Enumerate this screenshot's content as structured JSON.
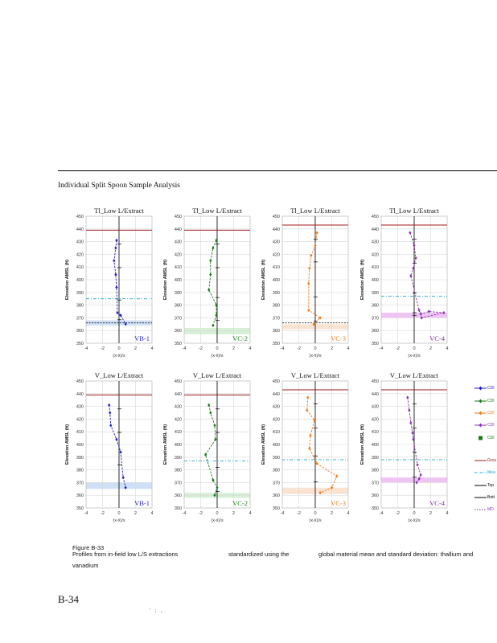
{
  "section_title": "Individual Split Spoon Sample Analysis",
  "caption": {
    "label": "Figure B-33",
    "line1_a": "Profiles from in-field low L/S extractions",
    "line1_b": "standardized using the",
    "line1_c": "global material mean and standard deviation: thallium and",
    "line2": "vanadium"
  },
  "page_number": "B-34",
  "footer_mark": "' ; ,",
  "colors": {
    "blue": "#1f1fc8",
    "green": "#1a7a1a",
    "orange": "#f07a1a",
    "purple": "#8a2fb0",
    "red": "#a01818",
    "cyan": "#20a8c8",
    "lightblue": "#cfe0f6",
    "lightgreen": "#d6f0d6",
    "lightorange": "#fbe3d2",
    "lightpurple": "#efc4f4"
  },
  "legend": [
    {
      "label": "CDI",
      "kind": "blue-line",
      "icon": "blue-diamond-marker"
    },
    {
      "label": "CDI",
      "kind": "green-line",
      "icon": "green-diamond-marker"
    },
    {
      "label": "CDI",
      "kind": "orange-line",
      "icon": "orange-diamond-marker"
    },
    {
      "label": "CDI",
      "kind": "purple-line",
      "icon": "purple-diamond-marker"
    },
    {
      "label": "CDI",
      "kind": "green-square",
      "icon": "green-square-marker"
    },
    {
      "label": "Grou",
      "kind": "red-line",
      "icon": "red-line"
    },
    {
      "label": "Mea",
      "kind": "cyan-dash",
      "icon": "cyan-dash-line"
    },
    {
      "label": "Top",
      "kind": "black-line",
      "icon": "black-line"
    },
    {
      "label": "Bott",
      "kind": "black-line",
      "icon": "black-line"
    },
    {
      "label": "MD",
      "kind": "purple-dot",
      "icon": "purple-dotted-line"
    }
  ],
  "chart_data": [
    {
      "type": "line",
      "title": "Tl_Low L/Extract",
      "tag": "VB-1",
      "color": "blue",
      "ylabel": "Elevation AMSL (ft)",
      "xlabel": "(x-x̄)/s",
      "xlim": [
        -4,
        4
      ],
      "ylim": [
        350,
        450
      ],
      "x_ticks": [
        "-4",
        "-2",
        "0",
        "2",
        "4"
      ],
      "y_ticks": [
        "350",
        "360",
        "370",
        "380",
        "390",
        "400",
        "410",
        "420",
        "430",
        "440",
        "450"
      ],
      "x": [
        -0.3,
        -0.4,
        -0.6,
        -0.4,
        -0.3,
        -0.2,
        0.2,
        0.8
      ],
      "y": [
        431,
        425,
        415,
        404,
        394,
        374,
        372,
        365
      ],
      "ground": 439,
      "mean": 385,
      "md": 366,
      "band": [
        364,
        368
      ],
      "band_color": "lightblue"
    },
    {
      "type": "line",
      "title": "Tl_Low L/Extract",
      "tag": "VC-2",
      "color": "green",
      "ylabel": "Elevation AMSL (ft)",
      "xlabel": "(x-x̄)/s",
      "xlim": [
        -4,
        4
      ],
      "ylim": [
        350,
        450
      ],
      "x_ticks": [
        "-4",
        "-2",
        "0",
        "2",
        "4"
      ],
      "y_ticks": [
        "350",
        "360",
        "370",
        "380",
        "390",
        "400",
        "410",
        "420",
        "430",
        "440",
        "450"
      ],
      "x": [
        -0.1,
        -0.5,
        -0.8,
        -0.8,
        -1.0,
        -0.1,
        -0.1,
        -0.5
      ],
      "y": [
        431,
        425,
        415,
        404,
        392,
        380,
        372,
        364
      ],
      "ground": 439,
      "mean": null,
      "md": null,
      "band": [
        357,
        362
      ],
      "band_color": "lightgreen"
    },
    {
      "type": "line",
      "title": "Tl_Low L/Extract",
      "tag": "VC-3",
      "color": "orange",
      "ylabel": "Elevation AMSL (ft)",
      "xlabel": "(x-x̄)/s",
      "xlim": [
        -4,
        4
      ],
      "ylim": [
        350,
        450
      ],
      "x_ticks": [
        "-4",
        "-2",
        "0",
        "2",
        "4"
      ],
      "y_ticks": [
        "350",
        "360",
        "370",
        "380",
        "390",
        "400",
        "410",
        "420",
        "430",
        "440",
        "450"
      ],
      "x": [
        0.2,
        0.0,
        -0.5,
        -0.7,
        -0.8,
        -0.8,
        0.6,
        -0.2
      ],
      "y": [
        437,
        427,
        419,
        409,
        397,
        376,
        370,
        365
      ],
      "ground": 443,
      "mean": null,
      "md": 366,
      "band": [
        361,
        365
      ],
      "band_color": "lightorange"
    },
    {
      "type": "line",
      "title": "Tl_Low L/Extract",
      "tag": "VC-4",
      "color": "purple",
      "ylabel": "Elevation AMSL (ft)",
      "xlabel": "(x-x̄)/s",
      "xlim": [
        -4,
        4
      ],
      "ylim": [
        350,
        450
      ],
      "x_ticks": [
        "-4",
        "-2",
        "0",
        "2",
        "4"
      ],
      "y_ticks": [
        "350",
        "360",
        "370",
        "380",
        "390",
        "400",
        "410",
        "420",
        "430",
        "440",
        "450"
      ],
      "x": [
        -0.5,
        0.0,
        0.2,
        -0.1,
        -0.4,
        0.6,
        0.8,
        1.8,
        3.6,
        0.9
      ],
      "y": [
        437,
        427,
        417,
        409,
        403,
        376,
        373,
        375,
        374,
        370
      ],
      "ground": 443,
      "mean": 387,
      "md": null,
      "band": [
        370,
        374
      ],
      "band_color": "lightpurple"
    },
    {
      "type": "line",
      "title": "V_Low L/Extract",
      "tag": "VB-1",
      "color": "blue",
      "ylabel": "Elevation AMSL (ft)",
      "xlabel": "(x-x̄)/s",
      "xlim": [
        -4,
        4
      ],
      "ylim": [
        350,
        450
      ],
      "x_ticks": [
        "-4",
        "-2",
        "0",
        "2",
        "4"
      ],
      "y_ticks": [
        "350",
        "360",
        "370",
        "380",
        "390",
        "400",
        "410",
        "420",
        "430",
        "440",
        "450"
      ],
      "x": [
        -1.2,
        -1.1,
        -1.0,
        -0.3,
        0.2,
        0.5,
        0.8
      ],
      "y": [
        431,
        425,
        415,
        404,
        394,
        374,
        366
      ],
      "ground": 439,
      "mean": null,
      "md": null,
      "band": [
        365,
        370
      ],
      "band_color": "lightblue"
    },
    {
      "type": "line",
      "title": "V_Low L/Extract",
      "tag": "VC-2",
      "color": "green",
      "ylabel": "Elevation AMSL (ft)",
      "xlabel": "(x-x̄)/s",
      "xlim": [
        -4,
        4
      ],
      "ylim": [
        350,
        450
      ],
      "x_ticks": [
        "-4",
        "-2",
        "0",
        "2",
        "4"
      ],
      "y_ticks": [
        "350",
        "360",
        "370",
        "380",
        "390",
        "400",
        "410",
        "420",
        "430",
        "440",
        "450"
      ],
      "x": [
        -1.0,
        -0.8,
        -0.3,
        -0.2,
        -1.4,
        -0.5,
        0.0,
        -0.3
      ],
      "y": [
        431,
        425,
        415,
        404,
        392,
        372,
        366,
        360
      ],
      "ground": 439,
      "mean": 387,
      "md": null,
      "band": [
        358,
        362
      ],
      "band_color": "lightgreen"
    },
    {
      "type": "line",
      "title": "V_Low L/Extract",
      "tag": "VC-3",
      "color": "orange",
      "ylabel": "Elevation AMSL (ft)",
      "xlabel": "(x-x̄)/s",
      "xlim": [
        -4,
        4
      ],
      "ylim": [
        350,
        450
      ],
      "x_ticks": [
        "-4",
        "-2",
        "0",
        "2",
        "4"
      ],
      "y_ticks": [
        "350",
        "360",
        "370",
        "380",
        "390",
        "400",
        "410",
        "420",
        "430",
        "440",
        "450"
      ],
      "x": [
        -0.9,
        -1.0,
        -0.1,
        -0.6,
        -0.7,
        0.2,
        2.6,
        2.0,
        0.6
      ],
      "y": [
        437,
        427,
        419,
        407,
        397,
        385,
        375,
        366,
        362
      ],
      "ground": 443,
      "mean": 388,
      "md": null,
      "band": [
        361,
        366
      ],
      "band_color": "lightorange"
    },
    {
      "type": "line",
      "title": "V_Low L/Extract",
      "tag": "VC-4",
      "color": "purple",
      "ylabel": "Elevation AMSL (ft)",
      "xlabel": "(x-x̄)/s",
      "xlim": [
        -4,
        4
      ],
      "ylim": [
        350,
        450
      ],
      "x_ticks": [
        "-4",
        "-2",
        "0",
        "2",
        "4"
      ],
      "y_ticks": [
        "350",
        "360",
        "370",
        "380",
        "390",
        "400",
        "410",
        "420",
        "430",
        "440",
        "450"
      ],
      "x": [
        -0.8,
        -0.6,
        -0.4,
        -0.2,
        -0.1,
        0.4,
        0.8,
        0.6,
        0.3
      ],
      "y": [
        437,
        427,
        417,
        409,
        404,
        384,
        376,
        373,
        370
      ],
      "ground": 443,
      "mean": 388,
      "md": null,
      "band": [
        370,
        374
      ],
      "band_color": "lightpurple"
    }
  ]
}
